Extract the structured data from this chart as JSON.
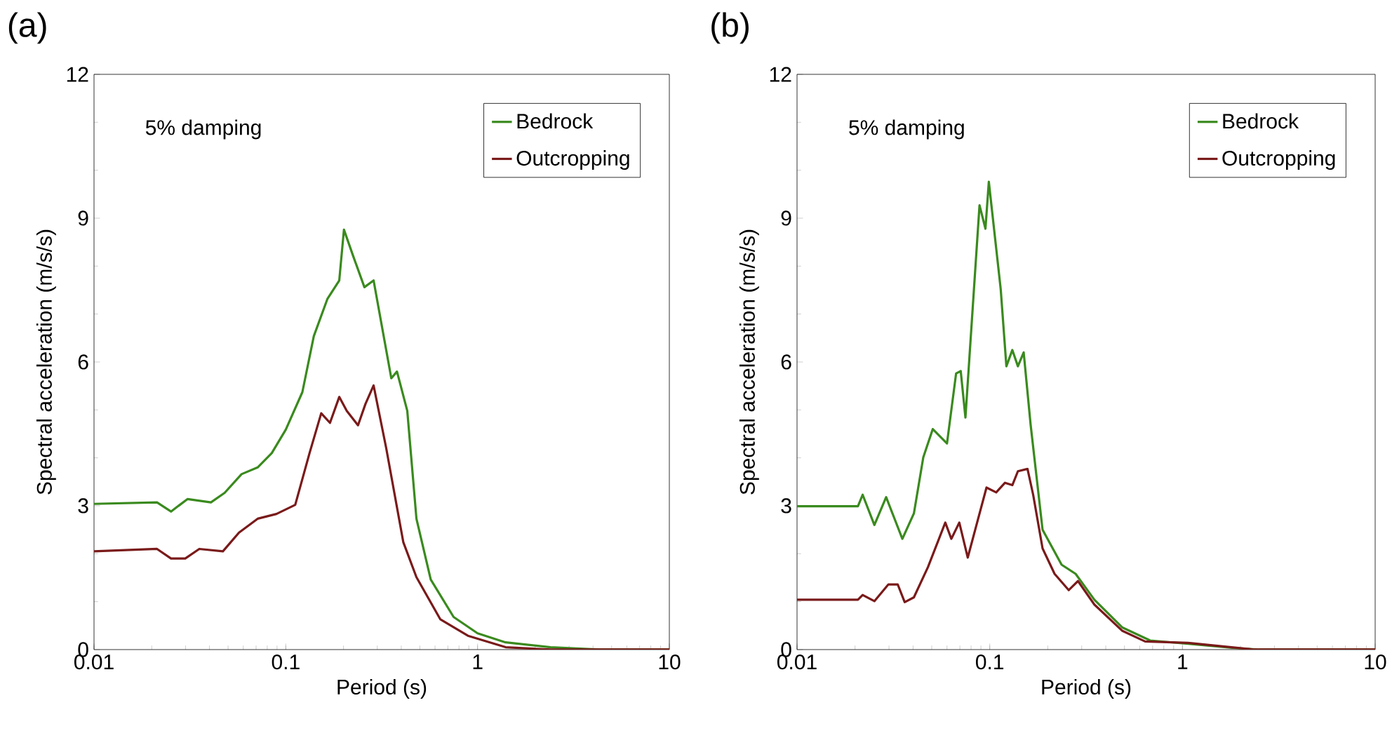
{
  "chart_data": [
    {
      "type": "line",
      "title": "(a)",
      "xlabel": "Period (s)",
      "ylabel": "Spectral acceleration (m/s/s)",
      "annotations": [
        "5% damping"
      ],
      "log": "x",
      "xlim": [
        0.01,
        10
      ],
      "ylim": [
        0,
        12
      ],
      "xticks": [
        0.01,
        0.1,
        1,
        10
      ],
      "yticks": [
        0,
        3,
        6,
        9,
        12
      ],
      "grid": false,
      "legend": "top right",
      "line_style": "solid",
      "marker": "none",
      "series": [
        {
          "name": "Bedrock",
          "color": "#3a8a1e",
          "x": [
            0.01,
            0.0213,
            0.0252,
            0.0307,
            0.0407,
            0.048,
            0.0588,
            0.0713,
            0.0845,
            0.1,
            0.122,
            0.14,
            0.165,
            0.19,
            0.201,
            0.225,
            0.257,
            0.287,
            0.355,
            0.38,
            0.43,
            0.48,
            0.57,
            0.75,
            1.0,
            1.4,
            2.4,
            4.3,
            10
          ],
          "values": [
            3.04,
            3.07,
            2.88,
            3.14,
            3.07,
            3.27,
            3.66,
            3.8,
            4.1,
            4.59,
            5.37,
            6.54,
            7.32,
            7.7,
            8.76,
            8.2,
            7.56,
            7.7,
            5.66,
            5.8,
            4.98,
            2.73,
            1.46,
            0.68,
            0.34,
            0.15,
            0.05,
            0,
            0
          ]
        },
        {
          "name": "Outcropping",
          "color": "#7a1a1a",
          "x": [
            0.01,
            0.0213,
            0.0252,
            0.0299,
            0.0354,
            0.047,
            0.057,
            0.0713,
            0.0894,
            0.112,
            0.133,
            0.153,
            0.17,
            0.19,
            0.208,
            0.238,
            0.26,
            0.287,
            0.334,
            0.41,
            0.48,
            0.64,
            0.89,
            1.4,
            2.4,
            10
          ],
          "values": [
            2.05,
            2.1,
            1.9,
            1.9,
            2.1,
            2.05,
            2.44,
            2.73,
            2.83,
            3.02,
            4.1,
            4.93,
            4.73,
            5.27,
            4.98,
            4.68,
            5.12,
            5.51,
            4.2,
            2.24,
            1.51,
            0.63,
            0.29,
            0.05,
            0,
            0
          ]
        }
      ]
    },
    {
      "type": "line",
      "title": "(b)",
      "xlabel": "Period (s)",
      "ylabel": "Spectral acceleration (m/s/s)",
      "annotations": [
        "5% damping"
      ],
      "log": "x",
      "xlim": [
        0.01,
        10
      ],
      "ylim": [
        0,
        12
      ],
      "xticks": [
        0.01,
        0.1,
        1,
        10
      ],
      "yticks": [
        0,
        3,
        6,
        9,
        12
      ],
      "grid": false,
      "legend": "top right",
      "line_style": "solid",
      "marker": "none",
      "series": [
        {
          "name": "Bedrock",
          "color": "#3a8a1e",
          "x": [
            0.01,
            0.0207,
            0.0219,
            0.0252,
            0.029,
            0.0352,
            0.0404,
            0.0452,
            0.0506,
            0.06,
            0.0669,
            0.0707,
            0.0748,
            0.0885,
            0.095,
            0.0989,
            0.114,
            0.122,
            0.131,
            0.14,
            0.15,
            0.163,
            0.188,
            0.236,
            0.279,
            0.349,
            0.488,
            0.68,
            1.07,
            1.77,
            2.5,
            10
          ],
          "values": [
            2.99,
            2.99,
            3.23,
            2.6,
            3.18,
            2.31,
            2.84,
            4.01,
            4.6,
            4.3,
            5.76,
            5.81,
            4.84,
            9.27,
            8.78,
            9.76,
            7.52,
            5.91,
            6.25,
            5.91,
            6.2,
            4.69,
            2.5,
            1.77,
            1.58,
            1.04,
            0.46,
            0.19,
            0.12,
            0.04,
            0,
            0
          ]
        },
        {
          "name": "Outcropping",
          "color": "#7a1a1a",
          "x": [
            0.01,
            0.0207,
            0.0219,
            0.0252,
            0.0298,
            0.0333,
            0.0362,
            0.0404,
            0.0478,
            0.0588,
            0.0632,
            0.0695,
            0.0769,
            0.086,
            0.0962,
            0.108,
            0.12,
            0.131,
            0.14,
            0.157,
            0.168,
            0.188,
            0.217,
            0.257,
            0.287,
            0.349,
            0.488,
            0.64,
            1.07,
            2.36,
            10
          ],
          "values": [
            1.04,
            1.04,
            1.14,
            1.01,
            1.36,
            1.36,
            0.99,
            1.09,
            1.72,
            2.65,
            2.31,
            2.65,
            1.92,
            2.65,
            3.38,
            3.28,
            3.48,
            3.43,
            3.72,
            3.77,
            3.23,
            2.11,
            1.58,
            1.24,
            1.43,
            0.94,
            0.39,
            0.17,
            0.14,
            0,
            0
          ]
        }
      ]
    }
  ]
}
